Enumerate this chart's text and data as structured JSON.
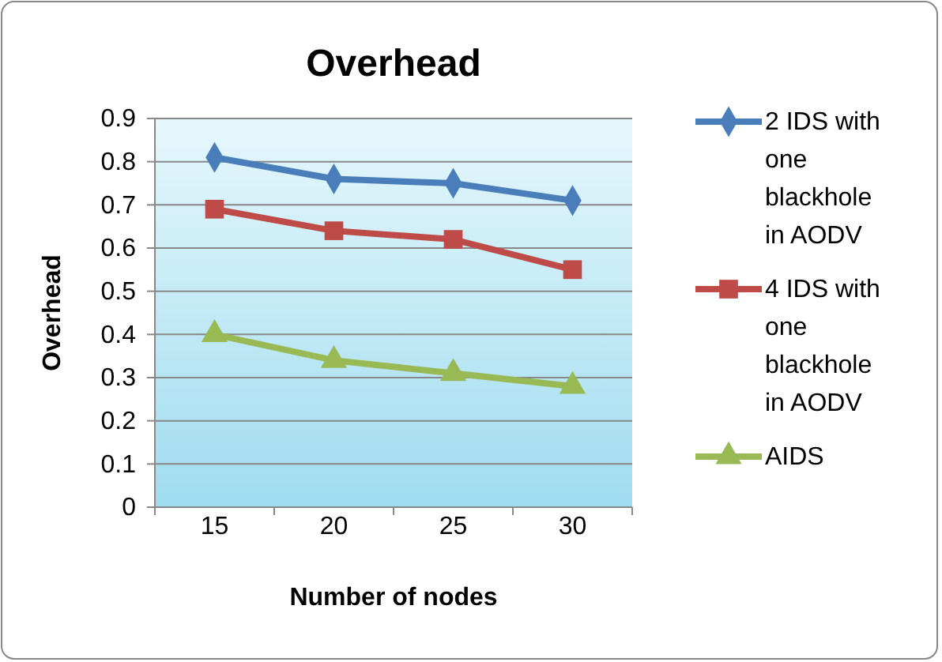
{
  "chart_data": {
    "type": "line",
    "title": "Overhead",
    "xlabel": "Number of nodes",
    "ylabel": "Overhead",
    "categories": [
      "15",
      "20",
      "25",
      "30"
    ],
    "series": [
      {
        "name": "2 IDS with one blackhole in AODV",
        "color": "#4a7ebb",
        "marker": "diamond",
        "values": [
          0.81,
          0.76,
          0.75,
          0.71
        ]
      },
      {
        "name": "4 IDS with one blackhole in AODV",
        "color": "#be4b48",
        "marker": "square",
        "values": [
          0.69,
          0.64,
          0.62,
          0.55
        ]
      },
      {
        "name": "AIDS",
        "color": "#98b954",
        "marker": "triangle",
        "values": [
          0.4,
          0.34,
          0.31,
          0.28
        ]
      }
    ],
    "ylim": [
      0,
      0.9
    ],
    "yticks": [
      0,
      0.1,
      0.2,
      0.3,
      0.4,
      0.5,
      0.6,
      0.7,
      0.8,
      0.9
    ],
    "grid": "y",
    "legend": "right"
  }
}
